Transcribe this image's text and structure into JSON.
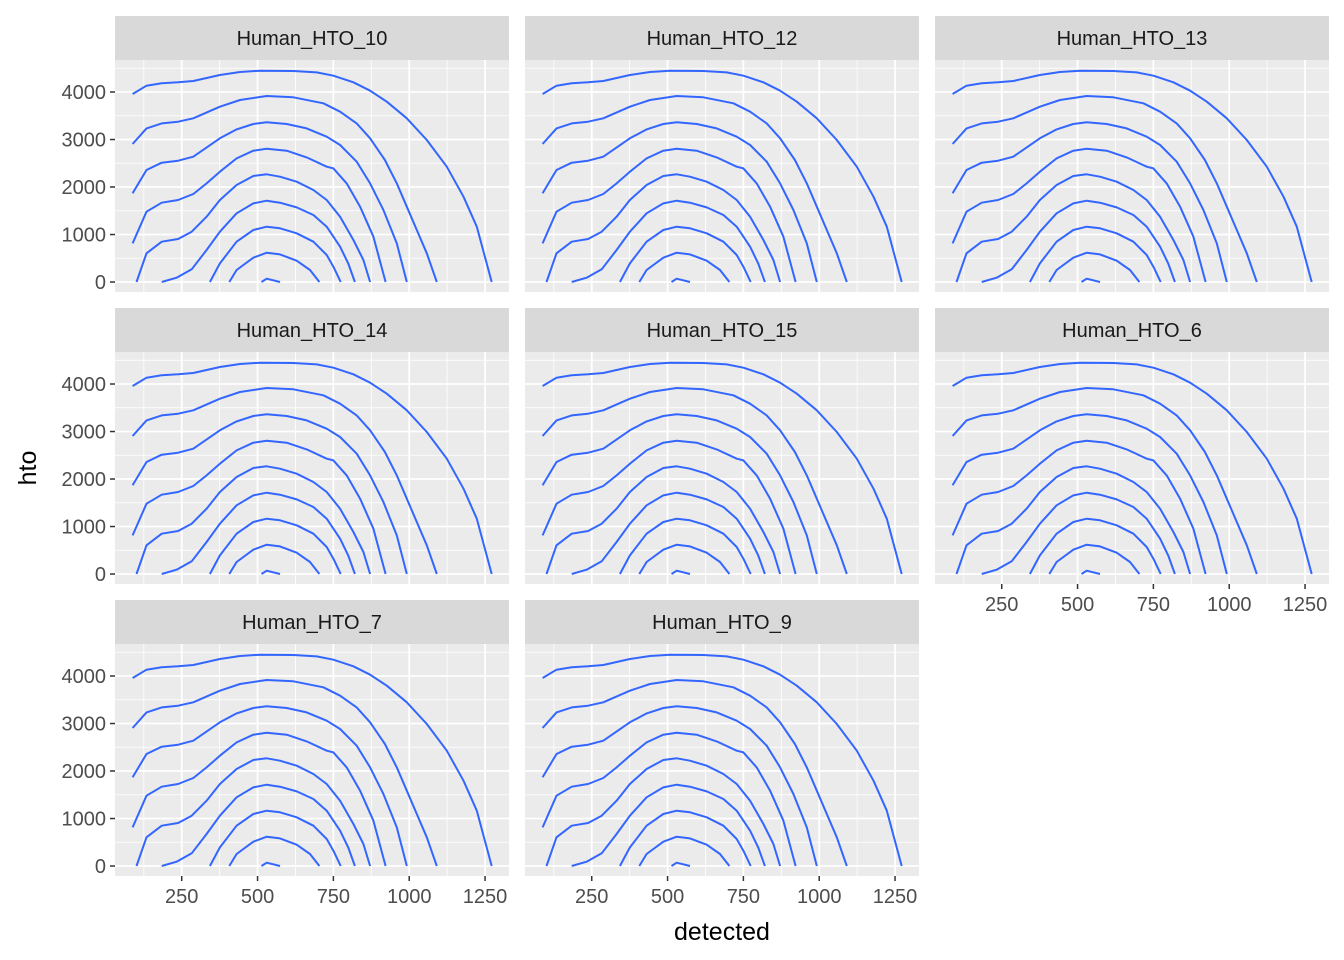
{
  "chart_data": {
    "type": "line",
    "subtype": "faceted contour (density contours)",
    "xlabel": "detected",
    "ylabel": "hto",
    "xlim": [
      30,
      1329
    ],
    "ylim": [
      -210,
      4674
    ],
    "x_ticks": [
      250,
      500,
      750,
      1000,
      1250
    ],
    "x_tick_labels": [
      "250",
      "500",
      "750",
      "1000",
      "1250"
    ],
    "y_ticks": [
      0,
      1000,
      2000,
      3000,
      4000
    ],
    "y_tick_labels": [
      "0",
      "1000",
      "2000",
      "3000",
      "4000"
    ],
    "x_minor": [
      125,
      375,
      625,
      875,
      1125
    ],
    "y_minor": [
      500,
      1500,
      2500,
      3500,
      4500
    ],
    "grid": true,
    "facets": [
      "Human_HTO_10",
      "Human_HTO_12",
      "Human_HTO_13",
      "Human_HTO_14",
      "Human_HTO_15",
      "Human_HTO_6",
      "Human_HTO_7",
      "Human_HTO_9"
    ],
    "facet_columns": 3,
    "colors": {
      "line": "#3366FF",
      "panel": "#EBEBEB",
      "strip": "#D9D9D9",
      "grid": "#FFFFFF"
    },
    "contours": [
      [
        [
          88,
          3958
        ],
        [
          134,
          4133
        ],
        [
          184,
          4183
        ],
        [
          238,
          4204
        ],
        [
          288,
          4232
        ],
        [
          376,
          4358
        ],
        [
          442,
          4421
        ],
        [
          508,
          4449
        ],
        [
          618,
          4442
        ],
        [
          695,
          4414
        ],
        [
          750,
          4344
        ],
        [
          816,
          4204
        ],
        [
          871,
          4028
        ],
        [
          926,
          3797
        ],
        [
          992,
          3446
        ],
        [
          1058,
          2989
        ],
        [
          1124,
          2428
        ],
        [
          1179,
          1796
        ],
        [
          1223,
          1165
        ],
        [
          1272,
          0
        ]
      ],
      [
        [
          88,
          2905
        ],
        [
          134,
          3235
        ],
        [
          184,
          3340
        ],
        [
          238,
          3375
        ],
        [
          288,
          3446
        ],
        [
          376,
          3691
        ],
        [
          442,
          3832
        ],
        [
          530,
          3916
        ],
        [
          618,
          3888
        ],
        [
          717,
          3762
        ],
        [
          772,
          3586
        ],
        [
          827,
          3340
        ],
        [
          871,
          3025
        ],
        [
          920,
          2568
        ],
        [
          959,
          2077
        ],
        [
          992,
          1586
        ],
        [
          1025,
          1095
        ],
        [
          1058,
          604
        ],
        [
          1091,
          0
        ]
      ],
      [
        [
          88,
          1867
        ],
        [
          134,
          2358
        ],
        [
          184,
          2512
        ],
        [
          238,
          2554
        ],
        [
          288,
          2638
        ],
        [
          376,
          3025
        ],
        [
          431,
          3214
        ],
        [
          486,
          3326
        ],
        [
          530,
          3362
        ],
        [
          596,
          3326
        ],
        [
          662,
          3235
        ],
        [
          728,
          3060
        ],
        [
          772,
          2884
        ],
        [
          827,
          2533
        ],
        [
          871,
          2077
        ],
        [
          915,
          1516
        ],
        [
          959,
          814
        ],
        [
          992,
          0
        ]
      ],
      [
        [
          88,
          814
        ],
        [
          134,
          1481
        ],
        [
          184,
          1670
        ],
        [
          238,
          1726
        ],
        [
          288,
          1853
        ],
        [
          332,
          2077
        ],
        [
          376,
          2323
        ],
        [
          431,
          2603
        ],
        [
          486,
          2765
        ],
        [
          530,
          2807
        ],
        [
          596,
          2765
        ],
        [
          662,
          2624
        ],
        [
          728,
          2428
        ],
        [
          750,
          2393
        ],
        [
          794,
          2077
        ],
        [
          838,
          1586
        ],
        [
          882,
          954
        ],
        [
          922,
          0
        ]
      ],
      [
        [
          101,
          0
        ],
        [
          134,
          604
        ],
        [
          184,
          849
        ],
        [
          238,
          905
        ],
        [
          283,
          1059
        ],
        [
          332,
          1375
        ],
        [
          376,
          1726
        ],
        [
          431,
          2042
        ],
        [
          486,
          2232
        ],
        [
          530,
          2267
        ],
        [
          574,
          2218
        ],
        [
          629,
          2112
        ],
        [
          684,
          1937
        ],
        [
          728,
          1726
        ],
        [
          772,
          1375
        ],
        [
          816,
          884
        ],
        [
          849,
          463
        ],
        [
          871,
          0
        ]
      ],
      [
        [
          184,
          0
        ],
        [
          233,
          91
        ],
        [
          283,
          267
        ],
        [
          332,
          674
        ],
        [
          376,
          1059
        ],
        [
          431,
          1446
        ],
        [
          486,
          1656
        ],
        [
          530,
          1712
        ],
        [
          574,
          1670
        ],
        [
          629,
          1572
        ],
        [
          684,
          1411
        ],
        [
          728,
          1165
        ],
        [
          772,
          744
        ],
        [
          799,
          393
        ],
        [
          821,
          0
        ]
      ],
      [
        [
          343,
          0
        ],
        [
          376,
          393
        ],
        [
          431,
          849
        ],
        [
          486,
          1095
        ],
        [
          530,
          1165
        ],
        [
          574,
          1130
        ],
        [
          629,
          1025
        ],
        [
          684,
          849
        ],
        [
          728,
          568
        ],
        [
          750,
          323
        ],
        [
          774,
          0
        ]
      ],
      [
        [
          407,
          0
        ],
        [
          431,
          253
        ],
        [
          486,
          512
        ],
        [
          530,
          617
        ],
        [
          574,
          582
        ],
        [
          629,
          449
        ],
        [
          673,
          253
        ],
        [
          704,
          0
        ]
      ],
      [
        [
          513,
          0
        ],
        [
          530,
          70
        ],
        [
          574,
          0
        ]
      ]
    ]
  }
}
